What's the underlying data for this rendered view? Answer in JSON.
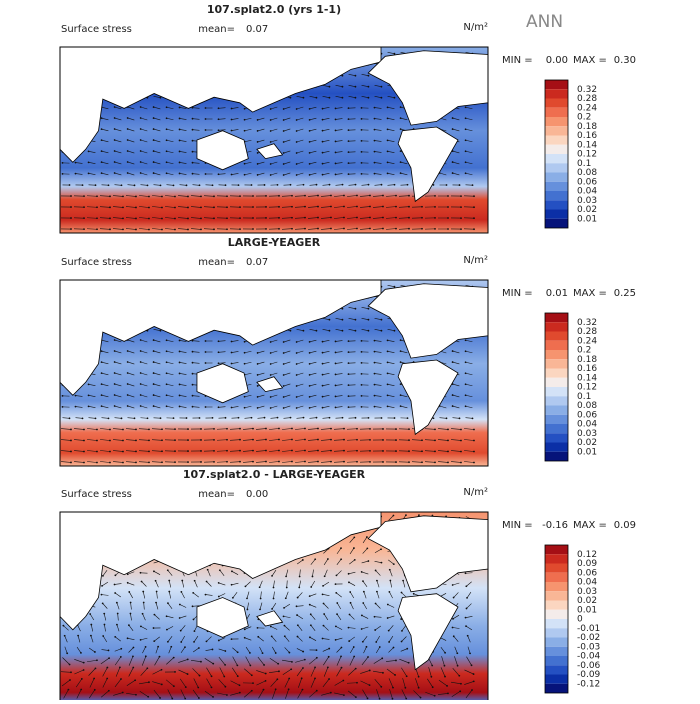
{
  "season": "ANN",
  "colors": [
    "#7a0403",
    "#a50f15",
    "#cb2a1f",
    "#e04a2e",
    "#ef6e4f",
    "#f6946f",
    "#f9b696",
    "#fbd6c0",
    "#f4ecea",
    "#d3e2f7",
    "#b0c9f0",
    "#8aaee6",
    "#6690dc",
    "#4371d0",
    "#2450c2",
    "#0b2fa6",
    "#06137a"
  ],
  "panels": [
    {
      "title": "107.splat2.0 (yrs 1-1)",
      "field": "Surface stress",
      "mean_label": "mean=",
      "mean": "0.07",
      "units": "N/m²",
      "min_label": "MIN =",
      "min": "0.00",
      "max_label": "MAX =",
      "max": "0.30",
      "levels": [
        "0.32",
        "0.28",
        "0.24",
        "0.2",
        "0.18",
        "0.16",
        "0.14",
        "0.12",
        "0.1",
        "0.08",
        "0.06",
        "0.04",
        "0.03",
        "0.02",
        "0.01"
      ]
    },
    {
      "title": "LARGE-YEAGER",
      "field": "Surface stress",
      "mean_label": "mean=",
      "mean": "0.07",
      "units": "N/m²",
      "min_label": "MIN =",
      "min": "0.01",
      "max_label": "MAX =",
      "max": "0.25",
      "levels": [
        "0.32",
        "0.28",
        "0.24",
        "0.2",
        "0.18",
        "0.16",
        "0.14",
        "0.12",
        "0.1",
        "0.08",
        "0.06",
        "0.04",
        "0.03",
        "0.02",
        "0.01"
      ]
    },
    {
      "title": "107.splat2.0 - LARGE-YEAGER",
      "field": "Surface stress",
      "mean_label": "mean=",
      "mean": "0.00",
      "units": "N/m²",
      "min_label": "MIN =",
      "min": "-0.16",
      "max_label": "MAX =",
      "max": "0.09",
      "levels": [
        "0.12",
        "0.09",
        "0.06",
        "0.04",
        "0.03",
        "0.02",
        "0.01",
        "0",
        "-0.01",
        "-0.02",
        "-0.03",
        "-0.04",
        "-0.06",
        "-0.09",
        "-0.12"
      ]
    }
  ]
}
